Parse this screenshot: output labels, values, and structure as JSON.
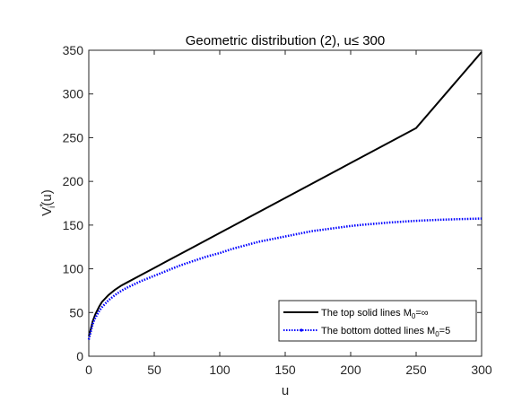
{
  "chart_data": {
    "type": "line",
    "title": "Geometric distribution (2), u≤ 300",
    "xlabel": "u",
    "ylabel": "V*i(u)",
    "ylabel_parts": {
      "base": "V",
      "sup": "*",
      "sub": "i",
      "tail": "(u)"
    },
    "xlim": [
      0,
      300
    ],
    "ylim": [
      0,
      350
    ],
    "xticks": [
      0,
      50,
      100,
      150,
      200,
      250,
      300
    ],
    "yticks": [
      0,
      50,
      100,
      150,
      200,
      250,
      300,
      350
    ],
    "grid": false,
    "legend_position": "bottom-right",
    "series": [
      {
        "name": "The top solid lines M0=∞",
        "legend": {
          "pre": "The top solid lines M",
          "sub": "0",
          "post": "=∞"
        },
        "color": "#000000",
        "style": "solid",
        "x": [
          0,
          1,
          2,
          3,
          5,
          8,
          10,
          15,
          20,
          25,
          30,
          40,
          50,
          60,
          80,
          100,
          120,
          150,
          180,
          200,
          250,
          300
        ],
        "y": [
          23,
          28,
          34,
          40,
          48,
          57,
          62,
          70,
          76,
          81,
          85,
          93,
          101,
          109,
          125,
          141,
          157,
          181,
          205,
          221,
          261,
          348
        ]
      },
      {
        "name": "The bottom dotted lines M0=5",
        "legend": {
          "pre": "The bottom dotted lines M",
          "sub": "0",
          "post": "=5"
        },
        "color": "#0000ff",
        "style": "dotted",
        "x": [
          0,
          1,
          2,
          3,
          5,
          8,
          10,
          15,
          20,
          25,
          30,
          40,
          50,
          60,
          70,
          80,
          90,
          100,
          110,
          120,
          130,
          140,
          150,
          160,
          170,
          180,
          190,
          200,
          210,
          220,
          230,
          240,
          250,
          260,
          270,
          280,
          290,
          300
        ],
        "y": [
          19,
          25,
          31,
          37,
          44,
          52,
          56,
          64,
          70,
          75,
          79,
          86,
          92,
          98,
          104,
          109,
          114,
          118,
          123,
          127,
          131,
          134,
          137,
          140,
          143,
          145,
          147,
          149,
          150.5,
          151.8,
          153,
          154,
          154.9,
          155.6,
          156.2,
          156.7,
          157.1,
          157.5
        ]
      }
    ]
  }
}
